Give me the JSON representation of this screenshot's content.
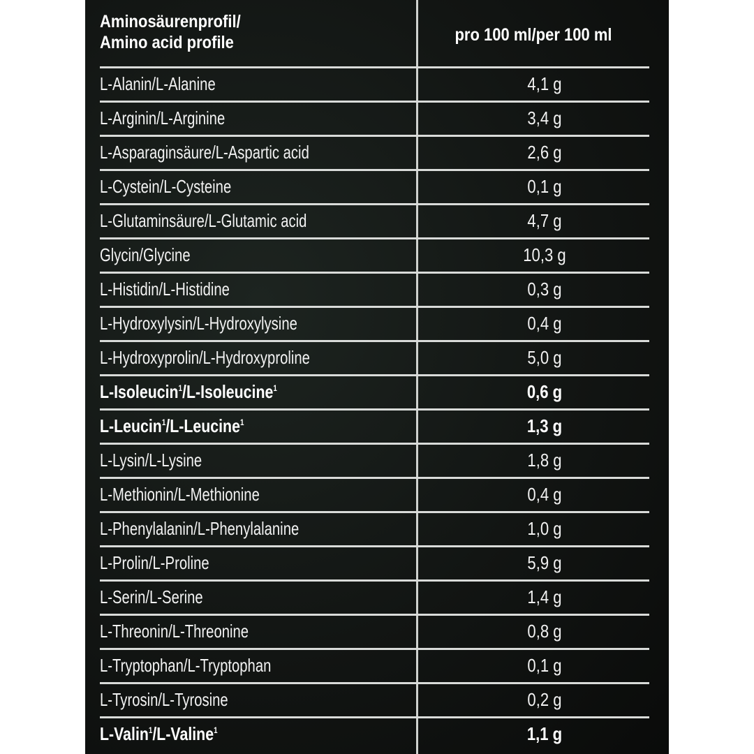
{
  "header": {
    "left_line1": "Aminosäurenprofil/",
    "left_line2": "Amino acid profile",
    "right": "pro 100 ml/per 100 ml"
  },
  "rows": [
    {
      "name": "L-Alanin/L-Alanine",
      "value": "4,1 g",
      "bold": false
    },
    {
      "name": "L-Arginin/L-Arginine",
      "value": "3,4 g",
      "bold": false
    },
    {
      "name": "L-Asparaginsäure/L-Aspartic acid",
      "value": "2,6 g",
      "bold": false
    },
    {
      "name": "L-Cystein/L-Cysteine",
      "value": "0,1 g",
      "bold": false
    },
    {
      "name": "L-Glutaminsäure/L-Glutamic acid",
      "value": "4,7 g",
      "bold": false
    },
    {
      "name": "Glycin/Glycine",
      "value": "10,3 g",
      "bold": false
    },
    {
      "name": "L-Histidin/L-Histidine",
      "value": "0,3 g",
      "bold": false
    },
    {
      "name": "L-Hydroxylysin/L-Hydroxylysine",
      "value": "0,4 g",
      "bold": false
    },
    {
      "name": "L-Hydroxyprolin/L-Hydroxyproline",
      "value": "5,0 g",
      "bold": false
    },
    {
      "name": "L-Isoleucin¹/L-Isoleucine¹",
      "value": "0,6 g",
      "bold": true
    },
    {
      "name": "L-Leucin¹/L-Leucine¹",
      "value": "1,3 g",
      "bold": true
    },
    {
      "name": "L-Lysin/L-Lysine",
      "value": "1,8 g",
      "bold": false
    },
    {
      "name": "L-Methionin/L-Methionine",
      "value": "0,4 g",
      "bold": false
    },
    {
      "name": "L-Phenylalanin/L-Phenylalanine",
      "value": "1,0 g",
      "bold": false
    },
    {
      "name": "L-Prolin/L-Proline",
      "value": "5,9 g",
      "bold": false
    },
    {
      "name": "L-Serin/L-Serine",
      "value": "1,4 g",
      "bold": false
    },
    {
      "name": "L-Threonin/L-Threonine",
      "value": "0,8 g",
      "bold": false
    },
    {
      "name": "L-Tryptophan/L-Tryptophan",
      "value": "0,1 g",
      "bold": false
    },
    {
      "name": "L-Tyrosin/L-Tyrosine",
      "value": "0,2 g",
      "bold": false
    },
    {
      "name": "L-Valin¹/L-Valine¹",
      "value": "1,1 g",
      "bold": true
    }
  ],
  "colors": {
    "background": "#121513",
    "text": "#ffffff",
    "rules": "#d9dbd9"
  }
}
